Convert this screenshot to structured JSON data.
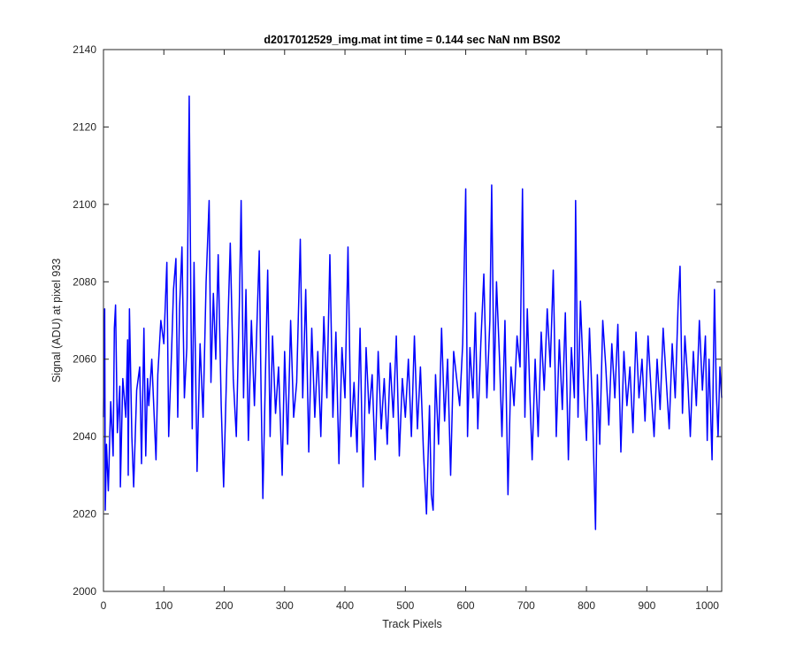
{
  "chart_data": {
    "type": "line",
    "title": "d2017012529_img.mat int time = 0.144 sec  NaN nm BS02",
    "xlabel": "Track Pixels",
    "ylabel": "Signal (ADU) at pixel 933",
    "xlim": [
      0,
      1024
    ],
    "ylim": [
      2000,
      2140
    ],
    "xticks": [
      0,
      100,
      200,
      300,
      400,
      500,
      600,
      700,
      800,
      900,
      1000
    ],
    "yticks": [
      2000,
      2020,
      2040,
      2060,
      2080,
      2100,
      2120,
      2140
    ],
    "grid": false,
    "line_color": "#0000ff",
    "series": [
      {
        "anchors": [
          [
            0,
            2045
          ],
          [
            2,
            2073
          ],
          [
            3,
            2021
          ],
          [
            5,
            2038
          ],
          [
            8,
            2026
          ],
          [
            12,
            2049
          ],
          [
            16,
            2035
          ],
          [
            18,
            2068
          ],
          [
            20,
            2074
          ],
          [
            23,
            2041
          ],
          [
            27,
            2053
          ],
          [
            28,
            2027
          ],
          [
            32,
            2055
          ],
          [
            37,
            2045
          ],
          [
            40,
            2065
          ],
          [
            41,
            2030
          ],
          [
            43,
            2073
          ],
          [
            47,
            2040
          ],
          [
            50,
            2027
          ],
          [
            55,
            2052
          ],
          [
            60,
            2058
          ],
          [
            63,
            2033
          ],
          [
            67,
            2068
          ],
          [
            70,
            2035
          ],
          [
            73,
            2055
          ],
          [
            75,
            2048
          ],
          [
            80,
            2060
          ],
          [
            87,
            2034
          ],
          [
            90,
            2056
          ],
          [
            95,
            2070
          ],
          [
            100,
            2064
          ],
          [
            105,
            2085
          ],
          [
            108,
            2040
          ],
          [
            113,
            2063
          ],
          [
            116,
            2078
          ],
          [
            120,
            2086
          ],
          [
            123,
            2045
          ],
          [
            126,
            2073
          ],
          [
            130,
            2089
          ],
          [
            134,
            2050
          ],
          [
            138,
            2063
          ],
          [
            142,
            2128
          ],
          [
            145,
            2070
          ],
          [
            147,
            2042
          ],
          [
            150,
            2085
          ],
          [
            155,
            2031
          ],
          [
            160,
            2064
          ],
          [
            165,
            2045
          ],
          [
            170,
            2080
          ],
          [
            175,
            2101
          ],
          [
            178,
            2054
          ],
          [
            182,
            2077
          ],
          [
            186,
            2060
          ],
          [
            190,
            2087
          ],
          [
            195,
            2048
          ],
          [
            199,
            2027
          ],
          [
            205,
            2063
          ],
          [
            210,
            2090
          ],
          [
            215,
            2055
          ],
          [
            220,
            2040
          ],
          [
            225,
            2074
          ],
          [
            228,
            2101
          ],
          [
            232,
            2050
          ],
          [
            236,
            2078
          ],
          [
            240,
            2039
          ],
          [
            245,
            2070
          ],
          [
            250,
            2048
          ],
          [
            258,
            2088
          ],
          [
            261,
            2052
          ],
          [
            264,
            2024
          ],
          [
            268,
            2054
          ],
          [
            272,
            2083
          ],
          [
            276,
            2040
          ],
          [
            280,
            2066
          ],
          [
            285,
            2046
          ],
          [
            290,
            2058
          ],
          [
            296,
            2030
          ],
          [
            300,
            2062
          ],
          [
            305,
            2038
          ],
          [
            310,
            2070
          ],
          [
            315,
            2045
          ],
          [
            320,
            2054
          ],
          [
            326,
            2091
          ],
          [
            330,
            2050
          ],
          [
            335,
            2078
          ],
          [
            340,
            2036
          ],
          [
            345,
            2068
          ],
          [
            350,
            2045
          ],
          [
            355,
            2062
          ],
          [
            360,
            2040
          ],
          [
            365,
            2071
          ],
          [
            370,
            2050
          ],
          [
            375,
            2087
          ],
          [
            380,
            2045
          ],
          [
            385,
            2067
          ],
          [
            390,
            2033
          ],
          [
            395,
            2063
          ],
          [
            400,
            2050
          ],
          [
            405,
            2089
          ],
          [
            410,
            2040
          ],
          [
            415,
            2054
          ],
          [
            420,
            2036
          ],
          [
            425,
            2068
          ],
          [
            430,
            2027
          ],
          [
            435,
            2063
          ],
          [
            440,
            2046
          ],
          [
            445,
            2056
          ],
          [
            450,
            2034
          ],
          [
            455,
            2062
          ],
          [
            460,
            2042
          ],
          [
            465,
            2055
          ],
          [
            470,
            2038
          ],
          [
            475,
            2059
          ],
          [
            480,
            2045
          ],
          [
            485,
            2066
          ],
          [
            490,
            2035
          ],
          [
            495,
            2055
          ],
          [
            500,
            2045
          ],
          [
            505,
            2060
          ],
          [
            510,
            2040
          ],
          [
            515,
            2066
          ],
          [
            520,
            2042
          ],
          [
            525,
            2058
          ],
          [
            530,
            2036
          ],
          [
            535,
            2020
          ],
          [
            540,
            2048
          ],
          [
            543,
            2025
          ],
          [
            546,
            2021
          ],
          [
            550,
            2056
          ],
          [
            555,
            2038
          ],
          [
            560,
            2068
          ],
          [
            565,
            2044
          ],
          [
            570,
            2060
          ],
          [
            575,
            2030
          ],
          [
            580,
            2062
          ],
          [
            585,
            2055
          ],
          [
            590,
            2048
          ],
          [
            595,
            2064
          ],
          [
            600,
            2104
          ],
          [
            603,
            2040
          ],
          [
            607,
            2063
          ],
          [
            612,
            2050
          ],
          [
            616,
            2072
          ],
          [
            620,
            2042
          ],
          [
            625,
            2064
          ],
          [
            630,
            2082
          ],
          [
            635,
            2050
          ],
          [
            640,
            2070
          ],
          [
            643,
            2105
          ],
          [
            647,
            2052
          ],
          [
            651,
            2080
          ],
          [
            656,
            2060
          ],
          [
            660,
            2040
          ],
          [
            665,
            2070
          ],
          [
            670,
            2025
          ],
          [
            675,
            2058
          ],
          [
            680,
            2048
          ],
          [
            685,
            2066
          ],
          [
            690,
            2058
          ],
          [
            694,
            2104
          ],
          [
            698,
            2045
          ],
          [
            702,
            2073
          ],
          [
            706,
            2052
          ],
          [
            710,
            2034
          ],
          [
            715,
            2060
          ],
          [
            720,
            2040
          ],
          [
            725,
            2067
          ],
          [
            730,
            2052
          ],
          [
            735,
            2073
          ],
          [
            740,
            2058
          ],
          [
            745,
            2083
          ],
          [
            750,
            2040
          ],
          [
            755,
            2065
          ],
          [
            760,
            2047
          ],
          [
            765,
            2072
          ],
          [
            770,
            2034
          ],
          [
            775,
            2063
          ],
          [
            780,
            2050
          ],
          [
            782,
            2101
          ],
          [
            786,
            2045
          ],
          [
            790,
            2075
          ],
          [
            795,
            2055
          ],
          [
            800,
            2039
          ],
          [
            805,
            2068
          ],
          [
            810,
            2047
          ],
          [
            815,
            2016
          ],
          [
            818,
            2056
          ],
          [
            822,
            2038
          ],
          [
            827,
            2070
          ],
          [
            832,
            2058
          ],
          [
            837,
            2043
          ],
          [
            842,
            2064
          ],
          [
            847,
            2050
          ],
          [
            852,
            2069
          ],
          [
            857,
            2036
          ],
          [
            862,
            2062
          ],
          [
            867,
            2048
          ],
          [
            872,
            2058
          ],
          [
            877,
            2041
          ],
          [
            882,
            2067
          ],
          [
            887,
            2050
          ],
          [
            892,
            2060
          ],
          [
            897,
            2044
          ],
          [
            902,
            2066
          ],
          [
            907,
            2052
          ],
          [
            912,
            2040
          ],
          [
            917,
            2060
          ],
          [
            922,
            2047
          ],
          [
            927,
            2068
          ],
          [
            932,
            2055
          ],
          [
            937,
            2042
          ],
          [
            942,
            2064
          ],
          [
            947,
            2050
          ],
          [
            952,
            2075
          ],
          [
            955,
            2084
          ],
          [
            959,
            2046
          ],
          [
            963,
            2066
          ],
          [
            968,
            2054
          ],
          [
            972,
            2040
          ],
          [
            977,
            2062
          ],
          [
            982,
            2048
          ],
          [
            987,
            2070
          ],
          [
            992,
            2052
          ],
          [
            997,
            2066
          ],
          [
            1000,
            2039
          ],
          [
            1003,
            2060
          ],
          [
            1008,
            2034
          ],
          [
            1012,
            2078
          ],
          [
            1015,
            2052
          ],
          [
            1018,
            2040
          ],
          [
            1021,
            2058
          ],
          [
            1024,
            2050
          ]
        ]
      }
    ]
  }
}
